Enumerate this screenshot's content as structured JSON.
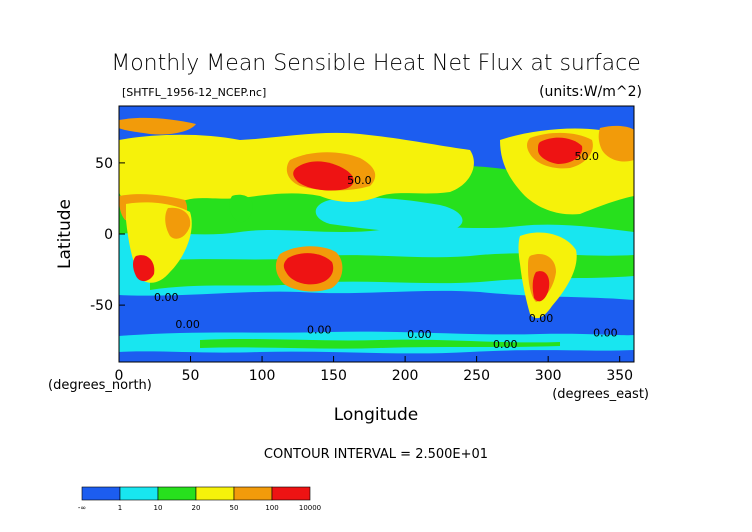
{
  "title": "Monthly Mean Sensible Heat Net Flux at surface",
  "file_label": "[SHTFL_1956-12_NCEP.nc]",
  "units_label": "(units:W/m^2)",
  "ylabel": "Latitude",
  "ylabel_units": "(degrees_north)",
  "xlabel": "Longitude",
  "xlabel_units": "(degrees_east)",
  "contour_interval": "CONTOUR INTERVAL = 2.500E+01",
  "chart_data": {
    "type": "heatmap",
    "title": "Monthly Mean Sensible Heat Net Flux at surface",
    "xlabel": "Longitude",
    "ylabel": "Latitude",
    "xlim": [
      0,
      360
    ],
    "ylim": [
      -90,
      90
    ],
    "x_ticks": [
      0,
      50,
      100,
      150,
      200,
      250,
      300,
      350
    ],
    "y_ticks": [
      50,
      0,
      -50
    ],
    "contour_labels": [
      {
        "text": "50.0",
        "x": 168,
        "y": 35
      },
      {
        "text": "50.0",
        "x": 327,
        "y": 52
      },
      {
        "text": "0.00",
        "x": 33,
        "y": -47
      },
      {
        "text": "0.00",
        "x": 48,
        "y": -66
      },
      {
        "text": "0.00",
        "x": 140,
        "y": -70
      },
      {
        "text": "0.00",
        "x": 210,
        "y": -73
      },
      {
        "text": "0.00",
        "x": 270,
        "y": -80
      },
      {
        "text": "0.00",
        "x": 295,
        "y": -62
      },
      {
        "text": "0.00",
        "x": 340,
        "y": -72
      }
    ],
    "colorbar": {
      "boundaries": [
        "-∞",
        "1",
        "10",
        "20",
        "50",
        "100",
        "10000"
      ],
      "colors": [
        "#1c5df0",
        "#18e6f0",
        "#27e01d",
        "#f6f20a",
        "#f29b0a",
        "#ee1313"
      ]
    }
  }
}
